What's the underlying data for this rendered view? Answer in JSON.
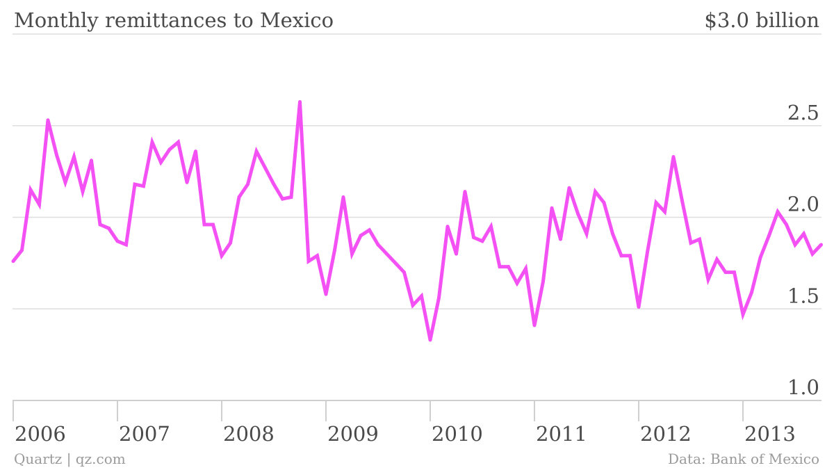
{
  "header": {
    "title": "Monthly remittances to Mexico",
    "top_value_label": "$3.0 billion"
  },
  "footer": {
    "source_left": "Quartz | qz.com",
    "source_right": "Data: Bank of Mexico"
  },
  "colors": {
    "line": "#f451f4",
    "grid": "#dedede",
    "text": "#4a4a4a",
    "muted": "#9a9a9a"
  },
  "chart_data": {
    "type": "line",
    "title": "Monthly remittances to Mexico",
    "xlabel": "",
    "ylabel": "",
    "ylim": [
      1.0,
      3.0
    ],
    "y_ticks": [
      "1.0",
      "1.5",
      "2.0",
      "2.5"
    ],
    "x_ticks": [
      "2006",
      "2007",
      "2008",
      "2009",
      "2010",
      "2011",
      "2012",
      "2013"
    ],
    "x_start": "2006-01",
    "grid": true,
    "series": [
      {
        "values": [
          1.76,
          1.82,
          2.15,
          2.07,
          2.53,
          2.34,
          2.19,
          2.33,
          2.14,
          2.31,
          1.96,
          1.94,
          1.87,
          1.85,
          2.18,
          2.17,
          2.41,
          2.3,
          2.37,
          2.41,
          2.19,
          2.36,
          1.96,
          1.96,
          1.79,
          1.86,
          2.11,
          2.18,
          2.36,
          2.27,
          2.18,
          2.1,
          2.11,
          2.63,
          1.76,
          1.79,
          1.58,
          1.82,
          2.11,
          1.8,
          1.9,
          1.93,
          1.85,
          1.8,
          1.75,
          1.7,
          1.52,
          1.57,
          1.33,
          1.56,
          1.95,
          1.8,
          2.14,
          1.89,
          1.87,
          1.95,
          1.73,
          1.73,
          1.64,
          1.72,
          1.41,
          1.65,
          2.05,
          1.88,
          2.16,
          2.02,
          1.91,
          2.14,
          2.08,
          1.91,
          1.79,
          1.79,
          1.51,
          1.81,
          2.08,
          2.03,
          2.33,
          2.09,
          1.86,
          1.88,
          1.66,
          1.77,
          1.7,
          1.7,
          1.47,
          1.59,
          1.78,
          1.9,
          2.03,
          1.96,
          1.85,
          1.91,
          1.8,
          1.85
        ]
      }
    ]
  }
}
